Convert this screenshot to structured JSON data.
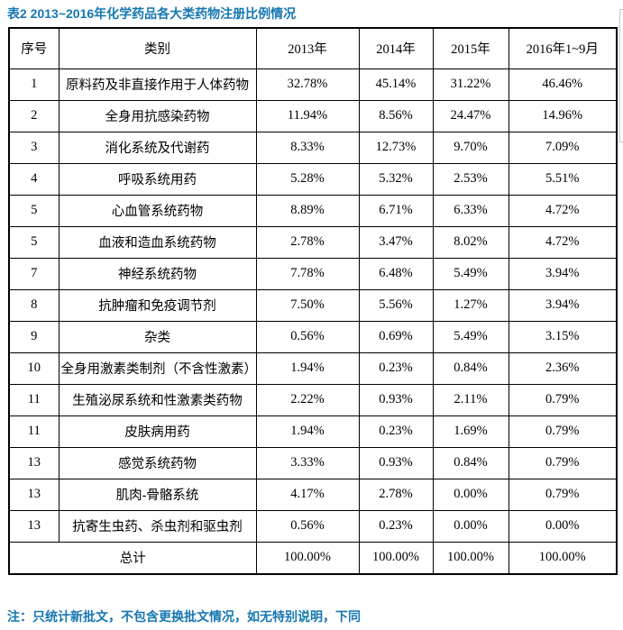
{
  "title": "表2 2013~2016年化学药品各大类药物注册比例情况",
  "note": "注：只统计新批文，不包含更换批文情况，如无特别说明，下同",
  "colors": {
    "accent_blue": "#1577b1",
    "table_border": "#000000",
    "background": "#ffffff"
  },
  "table": {
    "headers": [
      "序号",
      "类别",
      "2013年",
      "2014年",
      "2015年",
      "2016年1~9月"
    ],
    "rows": [
      [
        "1",
        "原料药及非直接作用于人体药物",
        "32.78%",
        "45.14%",
        "31.22%",
        "46.46%"
      ],
      [
        "2",
        "全身用抗感染药物",
        "11.94%",
        "8.56%",
        "24.47%",
        "14.96%"
      ],
      [
        "3",
        "消化系统及代谢药",
        "8.33%",
        "12.73%",
        "9.70%",
        "7.09%"
      ],
      [
        "4",
        "呼吸系统用药",
        "5.28%",
        "5.32%",
        "2.53%",
        "5.51%"
      ],
      [
        "5",
        "心血管系统药物",
        "8.89%",
        "6.71%",
        "6.33%",
        "4.72%"
      ],
      [
        "5",
        "血液和造血系统药物",
        "2.78%",
        "3.47%",
        "8.02%",
        "4.72%"
      ],
      [
        "7",
        "神经系统药物",
        "7.78%",
        "6.48%",
        "5.49%",
        "3.94%"
      ],
      [
        "8",
        "抗肿瘤和免疫调节剂",
        "7.50%",
        "5.56%",
        "1.27%",
        "3.94%"
      ],
      [
        "9",
        "杂类",
        "0.56%",
        "0.69%",
        "5.49%",
        "3.15%"
      ],
      [
        "10",
        "全身用激素类制剂（不含性激素）",
        "1.94%",
        "0.23%",
        "0.84%",
        "2.36%"
      ],
      [
        "11",
        "生殖泌尿系统和性激素类药物",
        "2.22%",
        "0.93%",
        "2.11%",
        "0.79%"
      ],
      [
        "11",
        "皮肤病用药",
        "1.94%",
        "0.23%",
        "1.69%",
        "0.79%"
      ],
      [
        "13",
        "感觉系统药物",
        "3.33%",
        "0.93%",
        "0.84%",
        "0.79%"
      ],
      [
        "13",
        "肌肉-骨骼系统",
        "4.17%",
        "2.78%",
        "0.00%",
        "0.79%"
      ],
      [
        "13",
        "抗寄生虫药、杀虫剂和驱虫剂",
        "0.56%",
        "0.23%",
        "0.00%",
        "0.00%"
      ]
    ],
    "total_row": {
      "label": "总计",
      "values": [
        "100.00%",
        "100.00%",
        "100.00%",
        "100.00%"
      ]
    }
  }
}
